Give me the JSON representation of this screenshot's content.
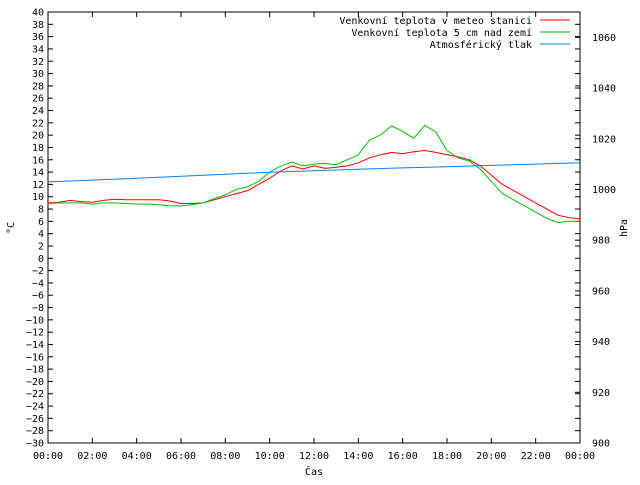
{
  "chart_data": {
    "type": "line",
    "xlabel": "Čas",
    "ylabel": "°C",
    "y2label": "hPa",
    "x_ticks": [
      "00:00",
      "02:00",
      "04:00",
      "06:00",
      "08:00",
      "10:00",
      "12:00",
      "14:00",
      "16:00",
      "18:00",
      "20:00",
      "22:00",
      "00:00"
    ],
    "xlim": [
      0,
      24
    ],
    "ylim": [
      -30,
      40
    ],
    "y_ticks": [
      40,
      38,
      36,
      34,
      32,
      30,
      28,
      26,
      24,
      22,
      20,
      18,
      16,
      14,
      12,
      10,
      8,
      6,
      4,
      2,
      0,
      -2,
      -4,
      -6,
      -8,
      -10,
      -12,
      -14,
      -16,
      -18,
      -20,
      -22,
      -24,
      -26,
      -28,
      -30
    ],
    "y2lim": [
      900,
      1070
    ],
    "y2_ticks": [
      1060,
      1040,
      1020,
      1000,
      980,
      960,
      940,
      920,
      900
    ],
    "grid": false,
    "legend_position": "top-right",
    "colors": {
      "red": "#ff0000",
      "green": "#00c000",
      "blue": "#0080ff"
    },
    "series": [
      {
        "name": "Venkovní teplota v meteo stanici",
        "color": "#ff0000",
        "axis": "left",
        "points": [
          [
            0.0,
            9.0
          ],
          [
            0.5,
            9.1
          ],
          [
            1.0,
            9.4
          ],
          [
            1.5,
            9.2
          ],
          [
            2.0,
            9.1
          ],
          [
            2.5,
            9.4
          ],
          [
            3.0,
            9.6
          ],
          [
            3.5,
            9.5
          ],
          [
            4.0,
            9.5
          ],
          [
            4.5,
            9.5
          ],
          [
            5.0,
            9.5
          ],
          [
            5.5,
            9.3
          ],
          [
            6.0,
            8.9
          ],
          [
            6.5,
            8.9
          ],
          [
            7.0,
            9.0
          ],
          [
            7.5,
            9.5
          ],
          [
            8.0,
            10.0
          ],
          [
            8.5,
            10.5
          ],
          [
            9.0,
            11.0
          ],
          [
            9.5,
            12.0
          ],
          [
            10.0,
            13.0
          ],
          [
            10.5,
            14.2
          ],
          [
            11.0,
            15.0
          ],
          [
            11.5,
            14.5
          ],
          [
            12.0,
            15.0
          ],
          [
            12.5,
            14.6
          ],
          [
            13.0,
            14.8
          ],
          [
            13.5,
            15.0
          ],
          [
            14.0,
            15.5
          ],
          [
            14.5,
            16.3
          ],
          [
            15.0,
            16.8
          ],
          [
            15.5,
            17.2
          ],
          [
            16.0,
            17.0
          ],
          [
            16.5,
            17.3
          ],
          [
            17.0,
            17.5
          ],
          [
            17.5,
            17.2
          ],
          [
            18.0,
            16.8
          ],
          [
            18.5,
            16.5
          ],
          [
            19.0,
            16.0
          ],
          [
            19.5,
            15.0
          ],
          [
            20.0,
            13.5
          ],
          [
            20.5,
            12.0
          ],
          [
            21.0,
            11.0
          ],
          [
            21.5,
            10.0
          ],
          [
            22.0,
            9.0
          ],
          [
            22.5,
            8.0
          ],
          [
            23.0,
            7.0
          ],
          [
            23.5,
            6.6
          ],
          [
            24.0,
            6.4
          ]
        ]
      },
      {
        "name": "Venkovní teplota 5 cm nad zemí",
        "color": "#00c000",
        "axis": "left",
        "points": [
          [
            0.0,
            8.9
          ],
          [
            0.5,
            9.0
          ],
          [
            1.0,
            9.0
          ],
          [
            1.5,
            9.0
          ],
          [
            2.0,
            8.8
          ],
          [
            2.5,
            9.0
          ],
          [
            3.0,
            9.0
          ],
          [
            3.5,
            8.9
          ],
          [
            4.0,
            8.8
          ],
          [
            4.5,
            8.8
          ],
          [
            5.0,
            8.7
          ],
          [
            5.5,
            8.5
          ],
          [
            6.0,
            8.5
          ],
          [
            6.5,
            8.7
          ],
          [
            7.0,
            9.0
          ],
          [
            7.5,
            9.7
          ],
          [
            8.0,
            10.3
          ],
          [
            8.5,
            11.2
          ],
          [
            9.0,
            11.6
          ],
          [
            9.5,
            12.5
          ],
          [
            10.0,
            14.0
          ],
          [
            10.5,
            15.0
          ],
          [
            11.0,
            15.6
          ],
          [
            11.5,
            15.0
          ],
          [
            12.0,
            15.3
          ],
          [
            12.5,
            15.4
          ],
          [
            13.0,
            15.2
          ],
          [
            13.5,
            16.0
          ],
          [
            14.0,
            16.8
          ],
          [
            14.5,
            19.2
          ],
          [
            15.0,
            20.0
          ],
          [
            15.5,
            21.5
          ],
          [
            16.0,
            20.6
          ],
          [
            16.5,
            19.5
          ],
          [
            17.0,
            21.6
          ],
          [
            17.5,
            20.5
          ],
          [
            18.0,
            17.5
          ],
          [
            18.5,
            16.3
          ],
          [
            19.0,
            15.8
          ],
          [
            19.5,
            14.5
          ],
          [
            20.0,
            12.5
          ],
          [
            20.5,
            10.5
          ],
          [
            21.0,
            9.5
          ],
          [
            21.5,
            8.5
          ],
          [
            22.0,
            7.5
          ],
          [
            22.5,
            6.5
          ],
          [
            23.0,
            5.8
          ],
          [
            23.5,
            6.0
          ],
          [
            24.0,
            6.0
          ]
        ]
      },
      {
        "name": "Atmosférický tlak",
        "color": "#0080ff",
        "axis": "right",
        "points": [
          [
            0.0,
            1003.0
          ],
          [
            2.0,
            1003.7
          ],
          [
            4.0,
            1004.4
          ],
          [
            6.0,
            1005.2
          ],
          [
            8.0,
            1006.0
          ],
          [
            10.0,
            1006.8
          ],
          [
            12.0,
            1007.4
          ],
          [
            14.0,
            1008.0
          ],
          [
            16.0,
            1008.5
          ],
          [
            18.0,
            1009.0
          ],
          [
            20.0,
            1009.5
          ],
          [
            22.0,
            1010.0
          ],
          [
            24.0,
            1010.5
          ]
        ]
      }
    ]
  }
}
